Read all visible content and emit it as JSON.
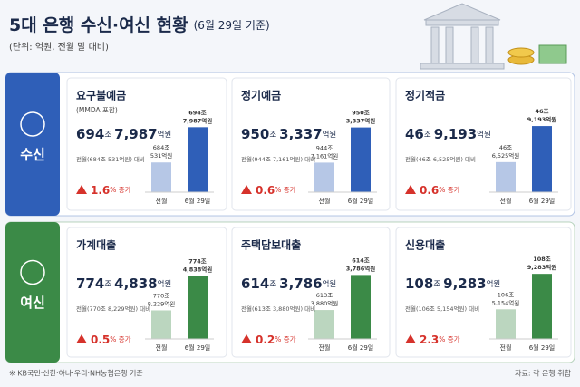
{
  "header": {
    "title": "5대 은행 수신·여신 현황",
    "date": "(6월 29일 기준)",
    "subtitle": "(단위: 억원, 전월 말 대비)"
  },
  "sections": [
    {
      "label": "수신",
      "color": "#2f5fb8",
      "cards": [
        {
          "title": "요구불예금",
          "note": "(MMDA 포함)",
          "amount": [
            "694",
            "조",
            "7,987",
            "억원"
          ],
          "compare": "전월(684조 531억원) 대비",
          "change": [
            "1.6",
            "% 증가"
          ],
          "chart": {
            "type": "bar",
            "categories": [
              "전월",
              "6월 29일"
            ],
            "values": [
              6840531,
              6947987
            ],
            "value_labels": [
              [
                "684조",
                "531억원"
              ],
              [
                "694조",
                "7,987억원"
              ]
            ],
            "ylim": [
              6750000,
              6960000
            ]
          }
        },
        {
          "title": "정기예금",
          "amount": [
            "950",
            "조",
            "3,337",
            "억원"
          ],
          "compare": "전월(944조 7,161억원) 대비",
          "change": [
            "0.6",
            "% 증가"
          ],
          "chart": {
            "type": "bar",
            "categories": [
              "전월",
              "6월 29일"
            ],
            "values": [
              9447161,
              9503337
            ],
            "value_labels": [
              [
                "944조",
                "7,161억원"
              ],
              [
                "950조",
                "3,337억원"
              ]
            ],
            "ylim": [
              9400000,
              9510000
            ]
          }
        },
        {
          "title": "정기적금",
          "amount": [
            "46",
            "조",
            "9,193",
            "억원"
          ],
          "compare": "전월(46조 6,525억원) 대비",
          "change": [
            "0.6",
            "% 증가"
          ],
          "chart": {
            "type": "bar",
            "categories": [
              "전월",
              "6월 29일"
            ],
            "values": [
              466525,
              469193
            ],
            "value_labels": [
              [
                "46조",
                "6,525억원"
              ],
              [
                "46조",
                "9,193억원"
              ]
            ],
            "ylim": [
              464300,
              469400
            ]
          }
        }
      ]
    },
    {
      "label": "여신",
      "color": "#3b8a47",
      "cards": [
        {
          "title": "가계대출",
          "amount": [
            "774",
            "조",
            "4,838",
            "억원"
          ],
          "compare": "전월(770조 8,229억원) 대비",
          "change": [
            "0.5",
            "% 증가"
          ],
          "chart": {
            "type": "bar",
            "categories": [
              "전월",
              "6월 29일"
            ],
            "values": [
              7708229,
              7744838
            ],
            "value_labels": [
              [
                "770조",
                "8,229억원"
              ],
              [
                "774조",
                "4,838억원"
              ]
            ],
            "ylim": [
              7678000,
              7748000
            ]
          }
        },
        {
          "title": "주택담보대출",
          "amount": [
            "614",
            "조",
            "3,786",
            "억원"
          ],
          "compare": "전월(613조 3,880억원) 대비",
          "change": [
            "0.2",
            "% 증가"
          ],
          "chart": {
            "type": "bar",
            "categories": [
              "전월",
              "6월 29일"
            ],
            "values": [
              6133880,
              6143786
            ],
            "value_labels": [
              [
                "613조",
                "3,880억원"
              ],
              [
                "614조",
                "3,786억원"
              ]
            ],
            "ylim": [
              6125700,
              6144400
            ]
          }
        },
        {
          "title": "신용대출",
          "amount": [
            "108",
            "조",
            "9,283",
            "억원"
          ],
          "compare": "전월(106조 5,154억원) 대비",
          "change": [
            "2.3",
            "% 증가"
          ],
          "chart": {
            "type": "bar",
            "categories": [
              "전월",
              "6월 29일"
            ],
            "values": [
              1065154,
              1089283
            ],
            "value_labels": [
              [
                "106조",
                "5,154억원"
              ],
              [
                "108조",
                "9,283억원"
              ]
            ],
            "ylim": [
              1045000,
              1090000
            ]
          }
        }
      ]
    }
  ],
  "footer": {
    "note": "※ KB국민·신한·하나·우리·NH농협은행 기준",
    "source": "자료: 각 은행 취합"
  }
}
